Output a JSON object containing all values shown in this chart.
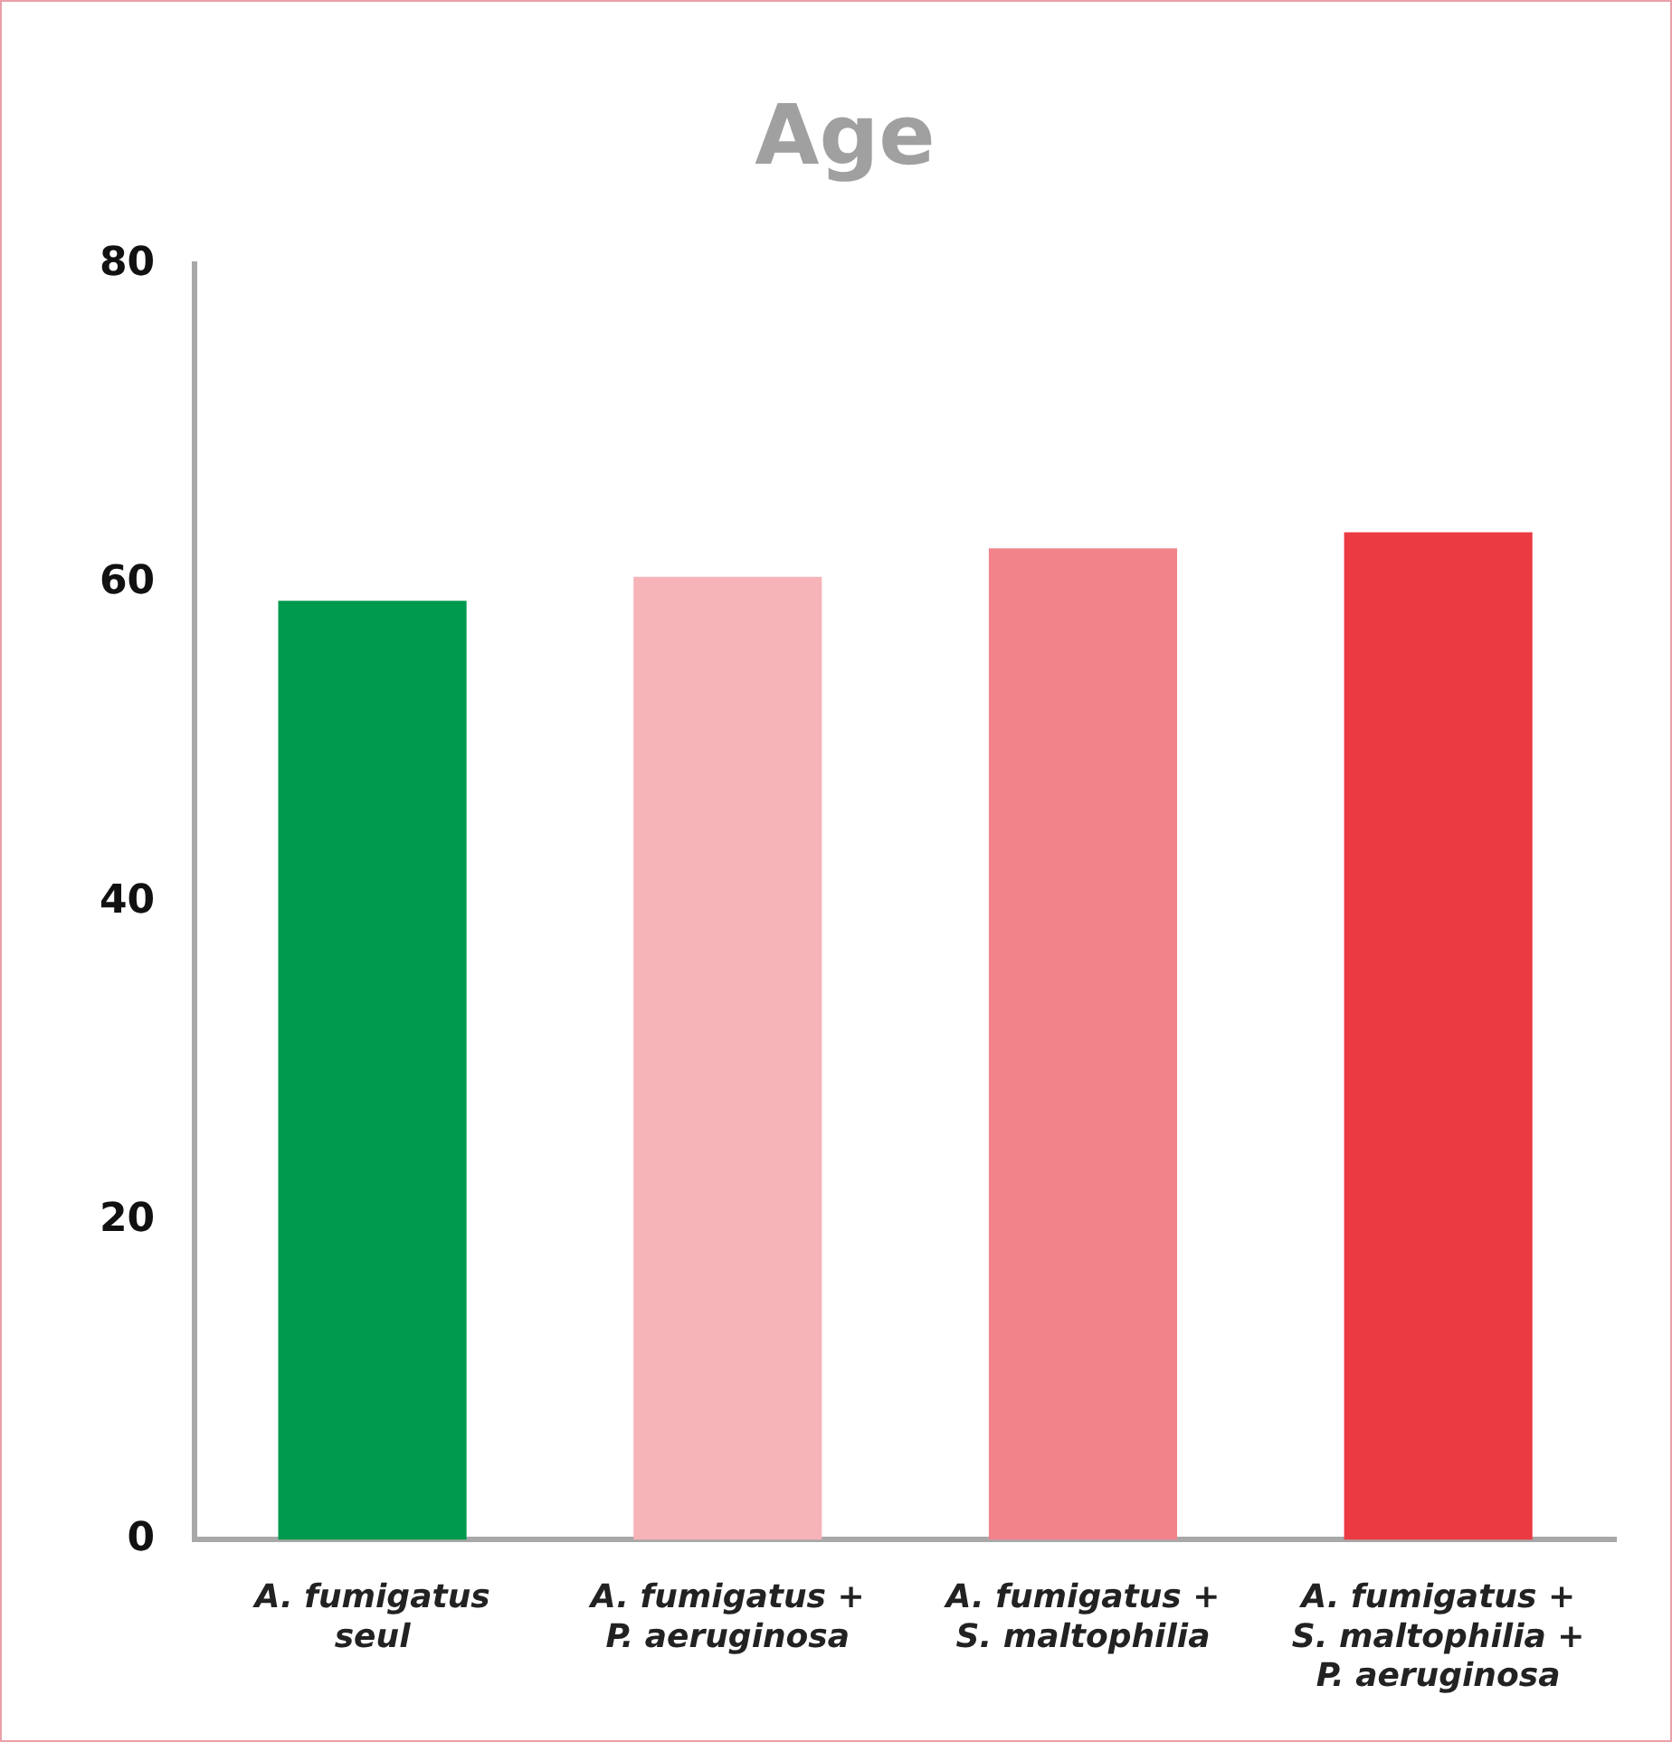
{
  "chart_data": {
    "type": "bar",
    "title": "Age",
    "categories": [
      "A. fumigatus\nseul",
      "A. fumigatus +\nP. aeruginosa",
      "A. fumigatus +\nS. maltophilia",
      "A. fumigatus +\nS. maltophilia +\nP. aeruginosa"
    ],
    "values": [
      58.9,
      60.4,
      62.2,
      63.2
    ],
    "colors": [
      "#009a4e",
      "#f6b3b8",
      "#f3838b",
      "#ec3a42"
    ],
    "ylim": [
      0,
      80
    ],
    "yticks": [
      0,
      20,
      40,
      60,
      80
    ],
    "grid": false,
    "legend": false
  }
}
